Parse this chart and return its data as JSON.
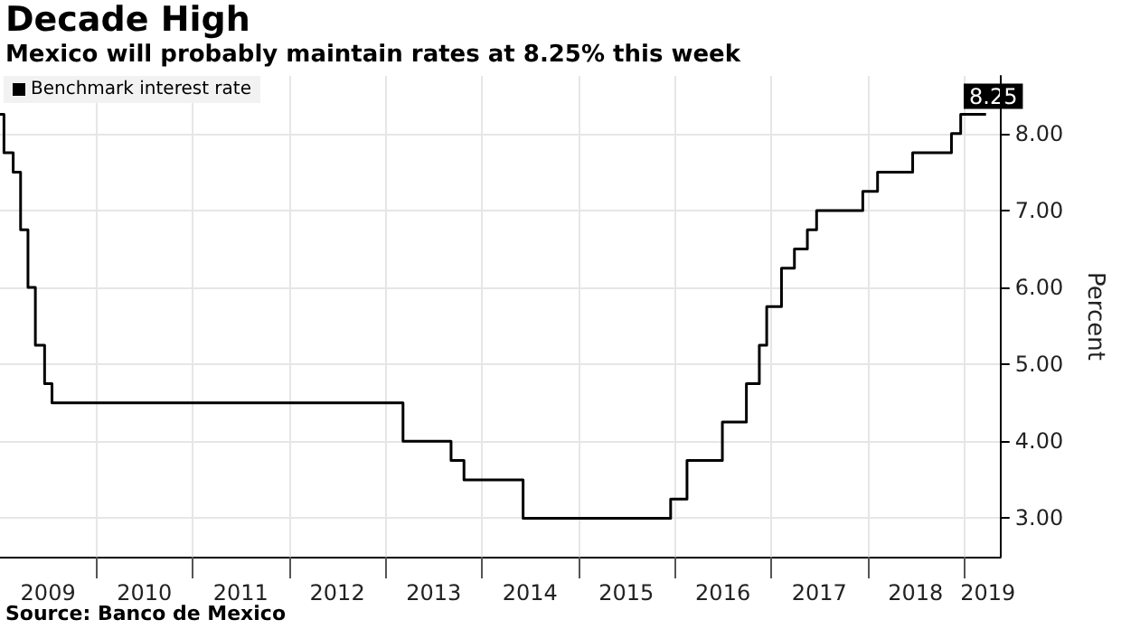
{
  "chart_data": {
    "type": "step",
    "title": "Decade High",
    "subtitle": "Mexico will probably maintain rates at 8.25% this week",
    "ylabel": "Percent",
    "annotations": [
      "Source: Banco de Mexico"
    ],
    "series": [
      {
        "name": "Benchmark interest rate",
        "color": "#000000",
        "x": [
          "2009-01-01",
          "2009-01-16",
          "2009-02-20",
          "2009-03-20",
          "2009-04-17",
          "2009-05-15",
          "2009-06-19",
          "2009-07-17",
          "2013-03-08",
          "2013-09-06",
          "2013-10-25",
          "2014-06-06",
          "2015-12-17",
          "2016-02-17",
          "2016-06-30",
          "2016-09-29",
          "2016-11-17",
          "2016-12-15",
          "2017-02-09",
          "2017-03-30",
          "2017-05-18",
          "2017-06-22",
          "2017-12-14",
          "2018-02-08",
          "2018-06-21",
          "2018-11-15",
          "2018-12-20",
          "2019-03-26"
        ],
        "values": [
          8.25,
          7.75,
          7.5,
          6.75,
          6.0,
          5.25,
          4.75,
          4.5,
          4.0,
          3.75,
          3.5,
          3.0,
          3.25,
          3.75,
          4.25,
          4.75,
          5.25,
          5.75,
          6.25,
          6.5,
          6.75,
          7.0,
          7.25,
          7.5,
          7.75,
          8.0,
          8.25,
          8.25
        ],
        "value_labels": [
          null,
          null,
          null,
          null,
          null,
          null,
          null,
          null,
          null,
          null,
          null,
          null,
          null,
          null,
          null,
          null,
          null,
          null,
          null,
          null,
          null,
          null,
          null,
          null,
          null,
          null,
          null,
          "8.25"
        ]
      }
    ],
    "xlim": [
      "2009-01-01",
      "2019-05-20"
    ],
    "xticks": [
      {
        "value": "2010-01-01",
        "label": null
      },
      {
        "value": "2011-01-01",
        "label": null
      },
      {
        "value": "2012-01-01",
        "label": null
      },
      {
        "value": "2013-01-01",
        "label": null
      },
      {
        "value": "2014-01-01",
        "label": null
      },
      {
        "value": "2015-01-01",
        "label": null
      },
      {
        "value": "2016-01-01",
        "label": null
      },
      {
        "value": "2017-01-01",
        "label": null
      },
      {
        "value": "2018-01-01",
        "label": null
      },
      {
        "value": "2019-01-01",
        "label": null
      },
      {
        "value": "2009-07-02",
        "label": "2009"
      },
      {
        "value": "2010-07-02",
        "label": "2010"
      },
      {
        "value": "2011-07-02",
        "label": "2011"
      },
      {
        "value": "2012-07-02",
        "label": "2012"
      },
      {
        "value": "2013-07-02",
        "label": "2013"
      },
      {
        "value": "2014-07-02",
        "label": "2014"
      },
      {
        "value": "2015-07-02",
        "label": "2015"
      },
      {
        "value": "2016-07-02",
        "label": "2016"
      },
      {
        "value": "2017-07-02",
        "label": "2017"
      },
      {
        "value": "2018-07-02",
        "label": "2018"
      },
      {
        "value": "2019-04-02",
        "label": "2019"
      }
    ],
    "ylim": [
      2.5,
      8.75
    ],
    "yticks": [
      {
        "value": 3,
        "label": "3.00"
      },
      {
        "value": 4,
        "label": "4.00"
      },
      {
        "value": 5,
        "label": "5.00"
      },
      {
        "value": 6,
        "label": "6.00"
      },
      {
        "value": 7,
        "label": "7.00"
      },
      {
        "value": 8,
        "label": "8.00"
      }
    ],
    "grid": true,
    "legend": "top left",
    "marker": "none",
    "line_style": "solid"
  }
}
